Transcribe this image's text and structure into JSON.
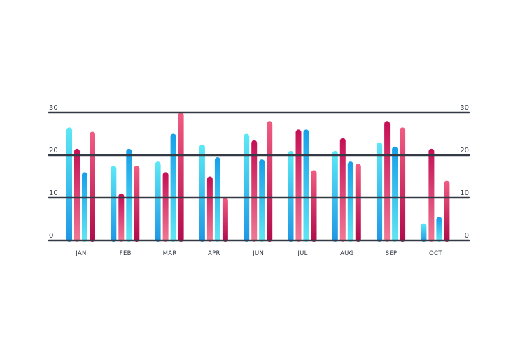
{
  "chart_data": {
    "type": "bar",
    "title": "",
    "xlabel": "",
    "ylabel": "",
    "ylim": [
      0,
      30
    ],
    "yticks": [
      0,
      10,
      20,
      30
    ],
    "grid": true,
    "axis_labels_both_sides": true,
    "categories": [
      "JAN",
      "FEB",
      "MAR",
      "APR",
      "JUN",
      "JUL",
      "AUG",
      "SEP",
      "OCT"
    ],
    "series": [
      {
        "values": [
          26.5,
          17.5,
          18.5,
          22.5,
          25,
          21,
          21,
          23,
          4
        ],
        "color_top": "#5ce9f5",
        "color_bottom": "#1e96e4"
      },
      {
        "values": [
          21.5,
          11,
          16,
          15,
          23.5,
          26,
          24,
          28,
          21.5
        ],
        "color_top": "#c40f55",
        "color_bottom": "#f07a95"
      },
      {
        "values": [
          16,
          21.5,
          25,
          19.5,
          19,
          26,
          18.5,
          22,
          5.5
        ],
        "color_top": "#169fe9",
        "color_bottom": "#62e6f3"
      },
      {
        "values": [
          25.5,
          17.5,
          30,
          10,
          28,
          16.5,
          18,
          26.5,
          14
        ],
        "color_top": "#f05d82",
        "color_bottom": "#b10a4b"
      }
    ]
  }
}
